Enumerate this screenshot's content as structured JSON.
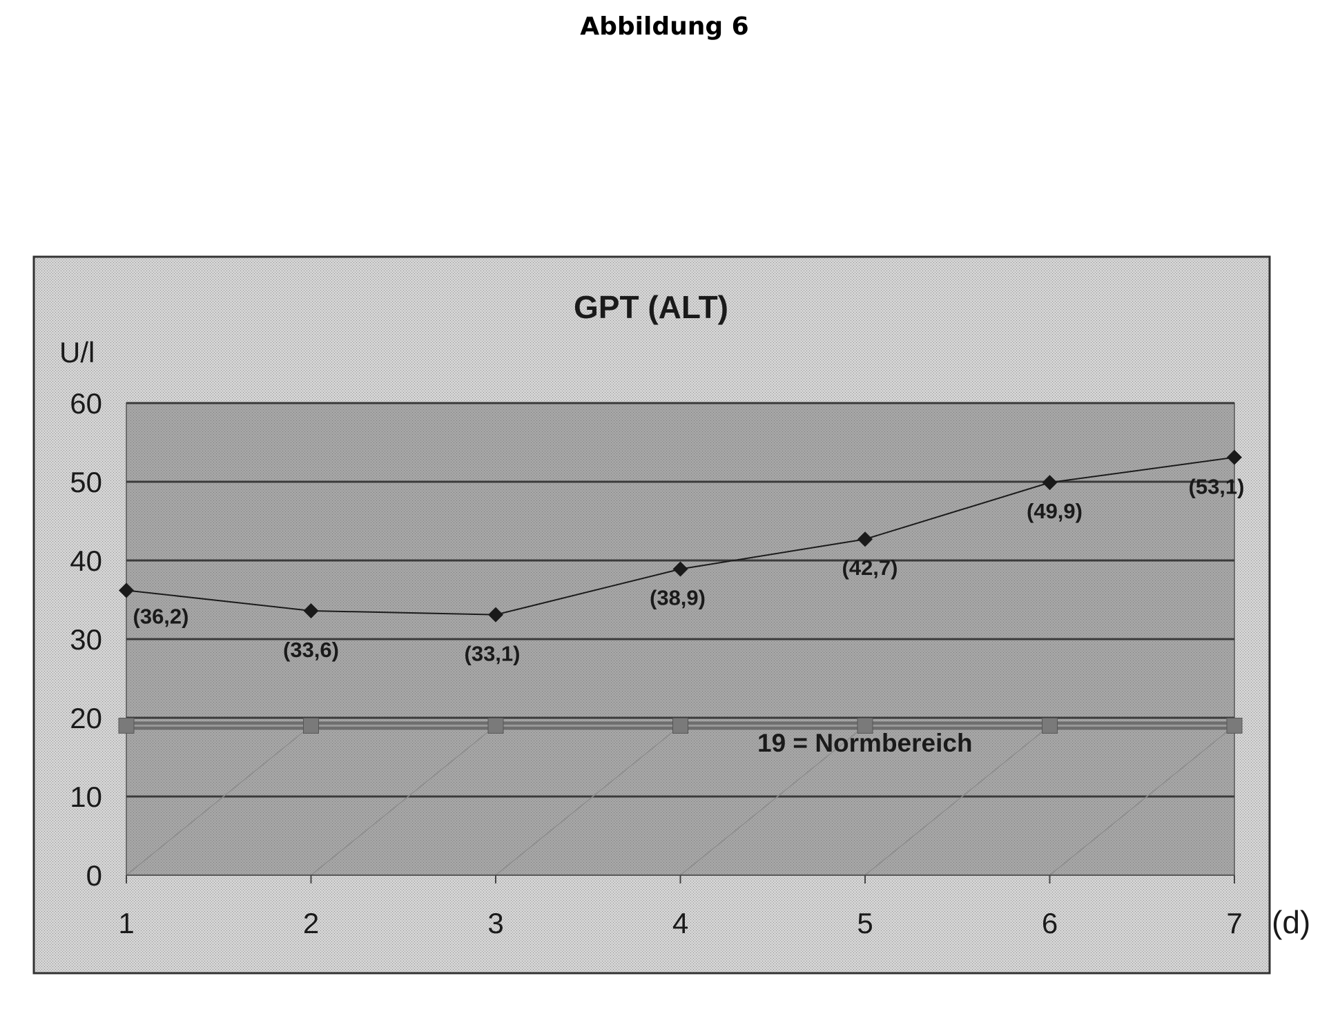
{
  "figure": {
    "caption": "Abbildung 6"
  },
  "chart_data": {
    "type": "line",
    "title": "GPT (ALT)",
    "ylabel": "U/l",
    "xlabel": "(d)",
    "x": [
      1,
      2,
      3,
      4,
      5,
      6,
      7
    ],
    "xticks": [
      "1",
      "2",
      "3",
      "4",
      "5",
      "6",
      "7"
    ],
    "ylim": [
      0,
      60
    ],
    "yticks": [
      "0",
      "10",
      "20",
      "30",
      "40",
      "50",
      "60"
    ],
    "grid": true,
    "series": [
      {
        "values": [
          36.2,
          33.6,
          33.1,
          38.9,
          42.7,
          49.9,
          53.1
        ],
        "labels": [
          "(36,2)",
          "(33,6)",
          "(33,1)",
          "(38,9)",
          "(42,7)",
          "(49,9)",
          "(53,1)"
        ],
        "marker": "diamond",
        "color": "#1a1a1a"
      },
      {
        "values": [
          19,
          19,
          19,
          19,
          19,
          19,
          19
        ],
        "marker": "square",
        "color": "#6e6e6e"
      }
    ],
    "annotations": [
      {
        "text": "19 = Normbereich"
      }
    ],
    "colors": {
      "outer_background": "#d2d2d2",
      "plot_background": "#a9a9a9",
      "gridline": "#3a3a3a",
      "reference_line": "#6e6e6e"
    }
  }
}
